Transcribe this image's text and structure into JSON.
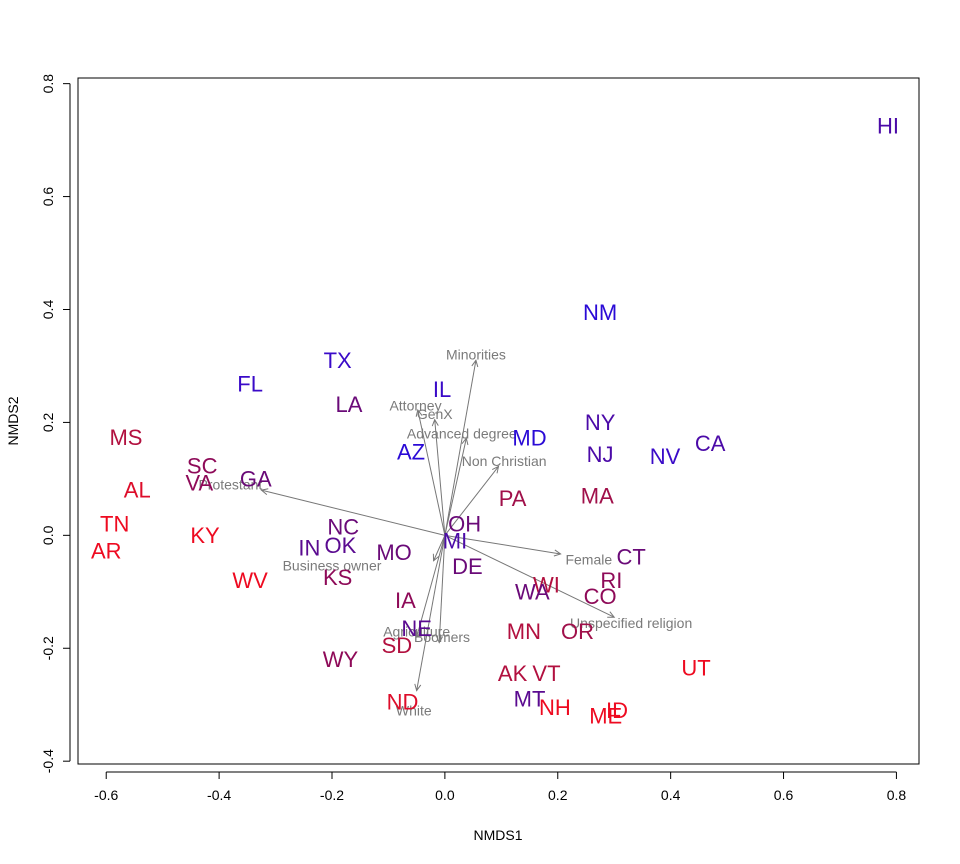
{
  "chart_data": {
    "type": "scatter",
    "title": "",
    "xlabel": "NMDS1",
    "ylabel": "NMDS2",
    "xlim": [
      -0.65,
      0.84
    ],
    "ylim": [
      -0.405,
      0.81
    ],
    "xticks": [
      -0.6,
      -0.4,
      -0.2,
      0.0,
      0.2,
      0.4,
      0.6,
      0.8
    ],
    "yticks": [
      -0.4,
      -0.2,
      0.0,
      0.2,
      0.4,
      0.6,
      0.8
    ],
    "xtick_labels": [
      "-0.6",
      "-0.4",
      "-0.2",
      "0.0",
      "0.2",
      "0.4",
      "0.6",
      "0.8"
    ],
    "ytick_labels": [
      "-0.4",
      "-0.2",
      "0.0",
      "0.2",
      "0.4",
      "0.6",
      "0.8"
    ],
    "grid": false,
    "origin": [
      0,
      0
    ],
    "points": [
      {
        "label": "HI",
        "x": 0.785,
        "y": 0.725,
        "color": "#4b0aa8"
      },
      {
        "label": "NM",
        "x": 0.275,
        "y": 0.395,
        "color": "#2a0ad6"
      },
      {
        "label": "TX",
        "x": -0.19,
        "y": 0.31,
        "color": "#3a0ac8"
      },
      {
        "label": "FL",
        "x": -0.345,
        "y": 0.268,
        "color": "#3a0ac8"
      },
      {
        "label": "IL",
        "x": -0.005,
        "y": 0.258,
        "color": "#3a0ac8"
      },
      {
        "label": "LA",
        "x": -0.17,
        "y": 0.232,
        "color": "#6a0a78"
      },
      {
        "label": "NY",
        "x": 0.275,
        "y": 0.2,
        "color": "#4b0aa8"
      },
      {
        "label": "MD",
        "x": 0.15,
        "y": 0.172,
        "color": "#2a0ad6"
      },
      {
        "label": "CA",
        "x": 0.47,
        "y": 0.163,
        "color": "#4b0aa8"
      },
      {
        "label": "MS",
        "x": -0.565,
        "y": 0.173,
        "color": "#b2103f"
      },
      {
        "label": "AZ",
        "x": -0.06,
        "y": 0.148,
        "color": "#2a0ad6"
      },
      {
        "label": "NJ",
        "x": 0.275,
        "y": 0.143,
        "color": "#4b0aa8"
      },
      {
        "label": "NV",
        "x": 0.39,
        "y": 0.14,
        "color": "#3a0ac8"
      },
      {
        "label": "SC",
        "x": -0.43,
        "y": 0.123,
        "color": "#8e0a58"
      },
      {
        "label": "GA",
        "x": -0.335,
        "y": 0.1,
        "color": "#6a0a78"
      },
      {
        "label": "VA",
        "x": -0.435,
        "y": 0.093,
        "color": "#8e0a58"
      },
      {
        "label": "AL",
        "x": -0.545,
        "y": 0.08,
        "color": "#dd0d2a"
      },
      {
        "label": "MA",
        "x": 0.27,
        "y": 0.07,
        "color": "#a0104a"
      },
      {
        "label": "PA",
        "x": 0.12,
        "y": 0.065,
        "color": "#a0104a"
      },
      {
        "label": "OH",
        "x": 0.035,
        "y": 0.02,
        "color": "#6a0a78"
      },
      {
        "label": "TN",
        "x": -0.585,
        "y": 0.02,
        "color": "#ee0a20"
      },
      {
        "label": "NC",
        "x": -0.18,
        "y": 0.015,
        "color": "#6a0a78"
      },
      {
        "label": "KY",
        "x": -0.425,
        "y": 0.0,
        "color": "#ee0a20"
      },
      {
        "label": "MI",
        "x": 0.018,
        "y": -0.01,
        "color": "#4b0aa8"
      },
      {
        "label": "OK",
        "x": -0.185,
        "y": -0.018,
        "color": "#5a0a90"
      },
      {
        "label": "IN",
        "x": -0.24,
        "y": -0.022,
        "color": "#5a0a90"
      },
      {
        "label": "MO",
        "x": -0.09,
        "y": -0.03,
        "color": "#6a0a78"
      },
      {
        "label": "AR",
        "x": -0.6,
        "y": -0.028,
        "color": "#ee0a20"
      },
      {
        "label": "CT",
        "x": 0.33,
        "y": -0.038,
        "color": "#6a0a78"
      },
      {
        "label": "DE",
        "x": 0.04,
        "y": -0.055,
        "color": "#6a0a78"
      },
      {
        "label": "KS",
        "x": -0.19,
        "y": -0.075,
        "color": "#8e0a58"
      },
      {
        "label": "WV",
        "x": -0.345,
        "y": -0.08,
        "color": "#ee0a20"
      },
      {
        "label": "RI",
        "x": 0.295,
        "y": -0.08,
        "color": "#8e0a58"
      },
      {
        "label": "WI",
        "x": 0.18,
        "y": -0.088,
        "color": "#b2103f"
      },
      {
        "label": "WA",
        "x": 0.155,
        "y": -0.1,
        "color": "#6a0a78"
      },
      {
        "label": "CO",
        "x": 0.275,
        "y": -0.108,
        "color": "#8e0a58"
      },
      {
        "label": "IA",
        "x": -0.07,
        "y": -0.115,
        "color": "#8e0a58"
      },
      {
        "label": "NE",
        "x": -0.05,
        "y": -0.165,
        "color": "#5a0a90"
      },
      {
        "label": "MN",
        "x": 0.14,
        "y": -0.17,
        "color": "#b2103f"
      },
      {
        "label": "OR",
        "x": 0.235,
        "y": -0.17,
        "color": "#a0104a"
      },
      {
        "label": "SD",
        "x": -0.085,
        "y": -0.195,
        "color": "#b2103f"
      },
      {
        "label": "WY",
        "x": -0.185,
        "y": -0.22,
        "color": "#8e0a58"
      },
      {
        "label": "UT",
        "x": 0.445,
        "y": -0.235,
        "color": "#ee0a20"
      },
      {
        "label": "AK",
        "x": 0.12,
        "y": -0.245,
        "color": "#b2103f"
      },
      {
        "label": "VT",
        "x": 0.18,
        "y": -0.245,
        "color": "#b2103f"
      },
      {
        "label": "MT",
        "x": 0.15,
        "y": -0.29,
        "color": "#5a0a90"
      },
      {
        "label": "ND",
        "x": -0.075,
        "y": -0.295,
        "color": "#dd0d2a"
      },
      {
        "label": "NH",
        "x": 0.195,
        "y": -0.305,
        "color": "#ee0a20"
      },
      {
        "label": "ID",
        "x": 0.305,
        "y": -0.31,
        "color": "#ee0a20"
      },
      {
        "label": "ME",
        "x": 0.285,
        "y": -0.32,
        "color": "#ee0a20"
      }
    ],
    "vectors": [
      {
        "label": "Minorities",
        "x": 0.055,
        "y": 0.31,
        "lx": 0.055,
        "ly": 0.32
      },
      {
        "label": "Attorney",
        "x": -0.048,
        "y": 0.222,
        "lx": -0.052,
        "ly": 0.23
      },
      {
        "label": "GenX",
        "x": -0.018,
        "y": 0.205,
        "lx": -0.018,
        "ly": 0.215
      },
      {
        "label": "Advanced degree",
        "x": 0.038,
        "y": 0.172,
        "lx": 0.03,
        "ly": 0.18
      },
      {
        "label": "Non Christian",
        "x": 0.095,
        "y": 0.122,
        "lx": 0.105,
        "ly": 0.132
      },
      {
        "label": "Protestant",
        "x": -0.325,
        "y": 0.08,
        "lx": -0.38,
        "ly": 0.09
      },
      {
        "label": "Female",
        "x": 0.205,
        "y": -0.033,
        "lx": 0.255,
        "ly": -0.043
      },
      {
        "label": "Business owner",
        "x": -0.02,
        "y": -0.045,
        "lx": -0.2,
        "ly": -0.053
      },
      {
        "label": "Unspecified religion",
        "x": 0.3,
        "y": -0.145,
        "lx": 0.33,
        "ly": -0.155
      },
      {
        "label": "Agriculture",
        "x": -0.05,
        "y": -0.18,
        "lx": -0.05,
        "ly": -0.17
      },
      {
        "label": "Boomers",
        "x": -0.01,
        "y": -0.19,
        "lx": -0.005,
        "ly": -0.18
      },
      {
        "label": "White",
        "x": -0.05,
        "y": -0.275,
        "lx": -0.055,
        "ly": -0.31
      }
    ]
  }
}
